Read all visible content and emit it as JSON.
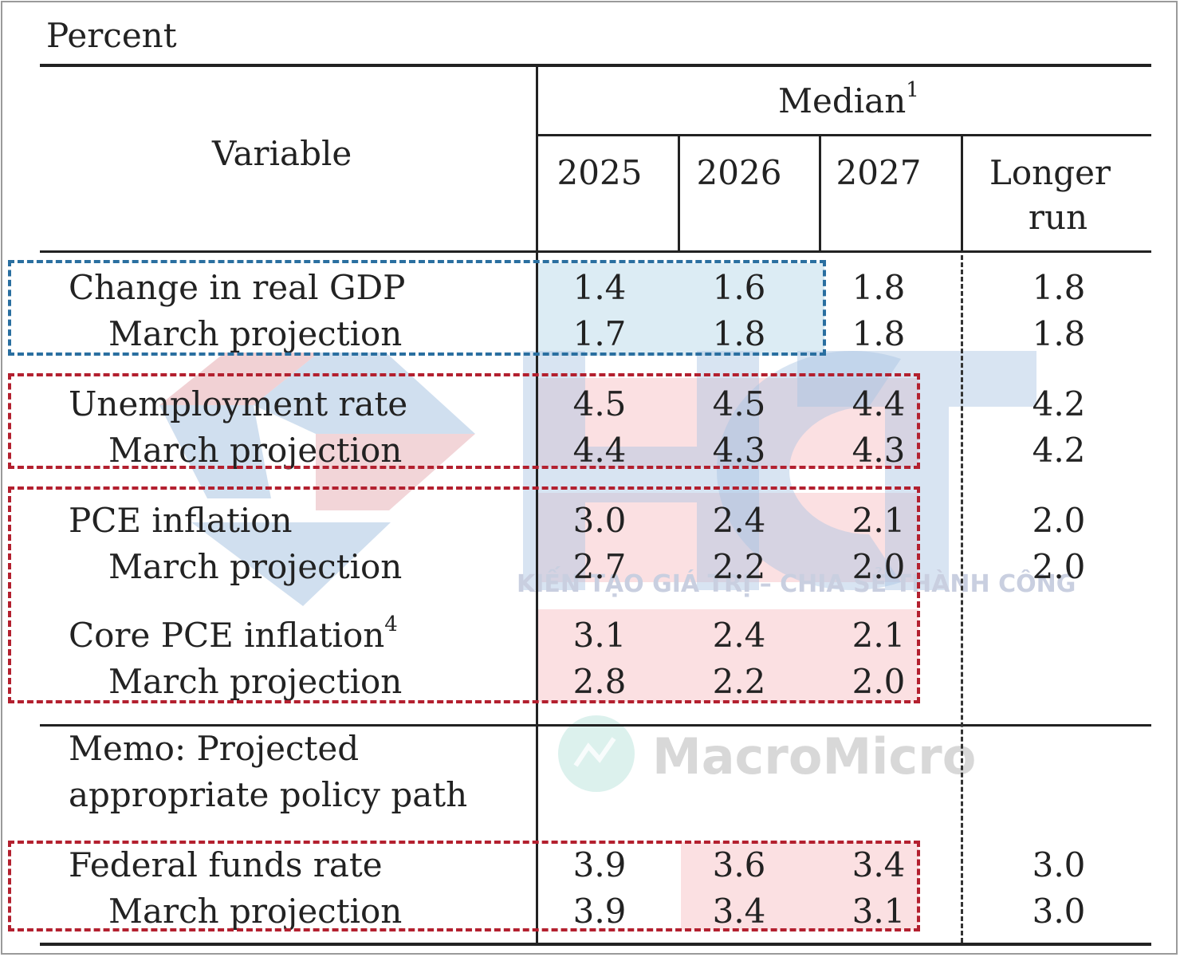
{
  "unit_label": "Percent",
  "header": {
    "variable": "Variable",
    "median": "Median",
    "median_note": "1",
    "years": [
      "2025",
      "2026",
      "2027"
    ],
    "longer_run_line1": "Longer",
    "longer_run_line2": "run"
  },
  "rows": {
    "gdp": {
      "label": "Change in real GDP",
      "values": [
        "1.4",
        "1.6",
        "1.8",
        "1.8"
      ]
    },
    "gdp_march": {
      "label": "March projection",
      "values": [
        "1.7",
        "1.8",
        "1.8",
        "1.8"
      ]
    },
    "unemp": {
      "label": "Unemployment rate",
      "values": [
        "4.5",
        "4.5",
        "4.4",
        "4.2"
      ]
    },
    "unemp_march": {
      "label": "March projection",
      "values": [
        "4.4",
        "4.3",
        "4.3",
        "4.2"
      ]
    },
    "pce": {
      "label": "PCE inflation",
      "values": [
        "3.0",
        "2.4",
        "2.1",
        "2.0"
      ]
    },
    "pce_march": {
      "label": "March projection",
      "values": [
        "2.7",
        "2.2",
        "2.0",
        "2.0"
      ]
    },
    "core": {
      "label": "Core PCE inflation",
      "note": "4",
      "values": [
        "3.1",
        "2.4",
        "2.1"
      ]
    },
    "core_march": {
      "label": "March projection",
      "values": [
        "2.8",
        "2.2",
        "2.0"
      ]
    },
    "memo_line1": "Memo: Projected",
    "memo_line2": "appropriate policy path",
    "ffr": {
      "label": "Federal funds rate",
      "values": [
        "3.9",
        "3.6",
        "3.4",
        "3.0"
      ]
    },
    "ffr_march": {
      "label": "March projection",
      "values": [
        "3.9",
        "3.4",
        "3.1",
        "3.0"
      ]
    }
  },
  "watermarks": {
    "hct": "HCT",
    "hct_tagline": "KIẾN TẠO GIÁ TRỊ – CHIA SẺ THÀNH CÔNG",
    "macromicro": "MacroMicro"
  },
  "colors": {
    "highlight_blue": "#dcecf4",
    "highlight_red": "#fbe0e2",
    "box_blue": "#2a6fa0",
    "box_red": "#b3202f"
  }
}
